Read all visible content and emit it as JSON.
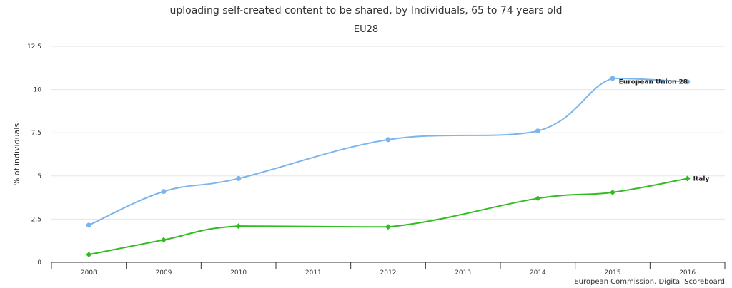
{
  "chart_data": {
    "type": "line",
    "title": "uploading self-created content to be shared, by Individuals, 65 to 74 years old",
    "subtitle": "EU28",
    "xlabel": "",
    "ylabel": "% of individuals",
    "x": [
      "2008",
      "2009",
      "2010",
      "2011",
      "2012",
      "2013",
      "2014",
      "2015",
      "2016"
    ],
    "yticks": [
      "0",
      "2.5",
      "5",
      "7.5",
      "10",
      "12.5"
    ],
    "ylim": [
      0,
      12.5
    ],
    "grid": true,
    "series": [
      {
        "name": "European Union 28",
        "color": "#7cb5ec",
        "marker": "circle",
        "points": [
          [
            "2008",
            2.15
          ],
          [
            "2009",
            4.1
          ],
          [
            "2010",
            4.85
          ],
          [
            "2012",
            7.1
          ],
          [
            "2014",
            7.6
          ],
          [
            "2015",
            10.65
          ],
          [
            "2016",
            10.45
          ]
        ]
      },
      {
        "name": "Italy",
        "color": "#33bb22",
        "marker": "diamond",
        "points": [
          [
            "2008",
            0.45
          ],
          [
            "2009",
            1.3
          ],
          [
            "2010",
            2.1
          ],
          [
            "2012",
            2.05
          ],
          [
            "2014",
            3.7
          ],
          [
            "2015",
            4.05
          ],
          [
            "2016",
            4.85
          ]
        ]
      }
    ]
  },
  "credits": "European Commission, Digital Scoreboard"
}
